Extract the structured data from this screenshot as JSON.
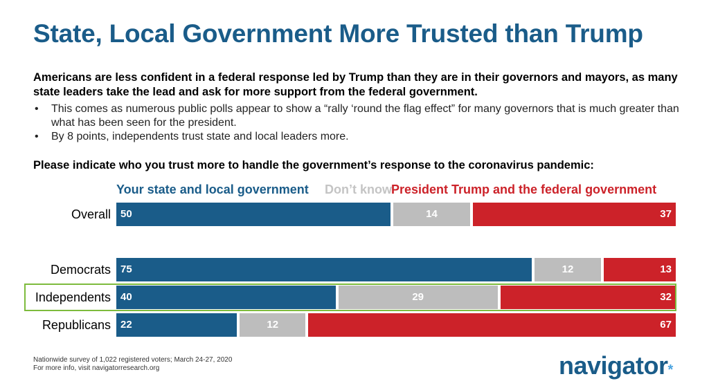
{
  "title": "State, Local Government More Trusted than Trump",
  "intro": "Americans are less confident in a federal response led by Trump than they are in their governors and mayors, as many state leaders take the lead and ask for more support from the federal government.",
  "bullets": [
    "This comes as numerous public polls appear to show a “rally ‘round the flag effect” for many governors that is much greater than what has been seen for the president.",
    "By 8 points, independents trust state and local leaders more."
  ],
  "bullet_symbol": "•",
  "question": "Please indicate who you trust more to handle the government’s response to the coronavirus pandemic:",
  "chart_data": {
    "type": "bar",
    "orientation": "horizontal-stacked",
    "categories": [
      "Overall",
      "Democrats",
      "Independents",
      "Republicans"
    ],
    "series": [
      {
        "name": "Your state and local government",
        "values": [
          50,
          75,
          40,
          22
        ],
        "color": "#1a5c89"
      },
      {
        "name": "Don’t know",
        "values": [
          14,
          12,
          29,
          12
        ],
        "color": "#bdbdbd"
      },
      {
        "name": "President Trump and the federal government",
        "values": [
          37,
          13,
          32,
          67
        ],
        "color": "#cc2229"
      }
    ],
    "highlighted_category": "Independents",
    "highlight_color": "#7dbb3c",
    "legend_position": "top"
  },
  "footnote": {
    "line1": "Nationwide survey of 1,022 registered voters; March 24-27, 2020",
    "line2": "For more info, visit navigatorresearch.org"
  },
  "logo": {
    "text": "navigator",
    "mark": "*"
  }
}
